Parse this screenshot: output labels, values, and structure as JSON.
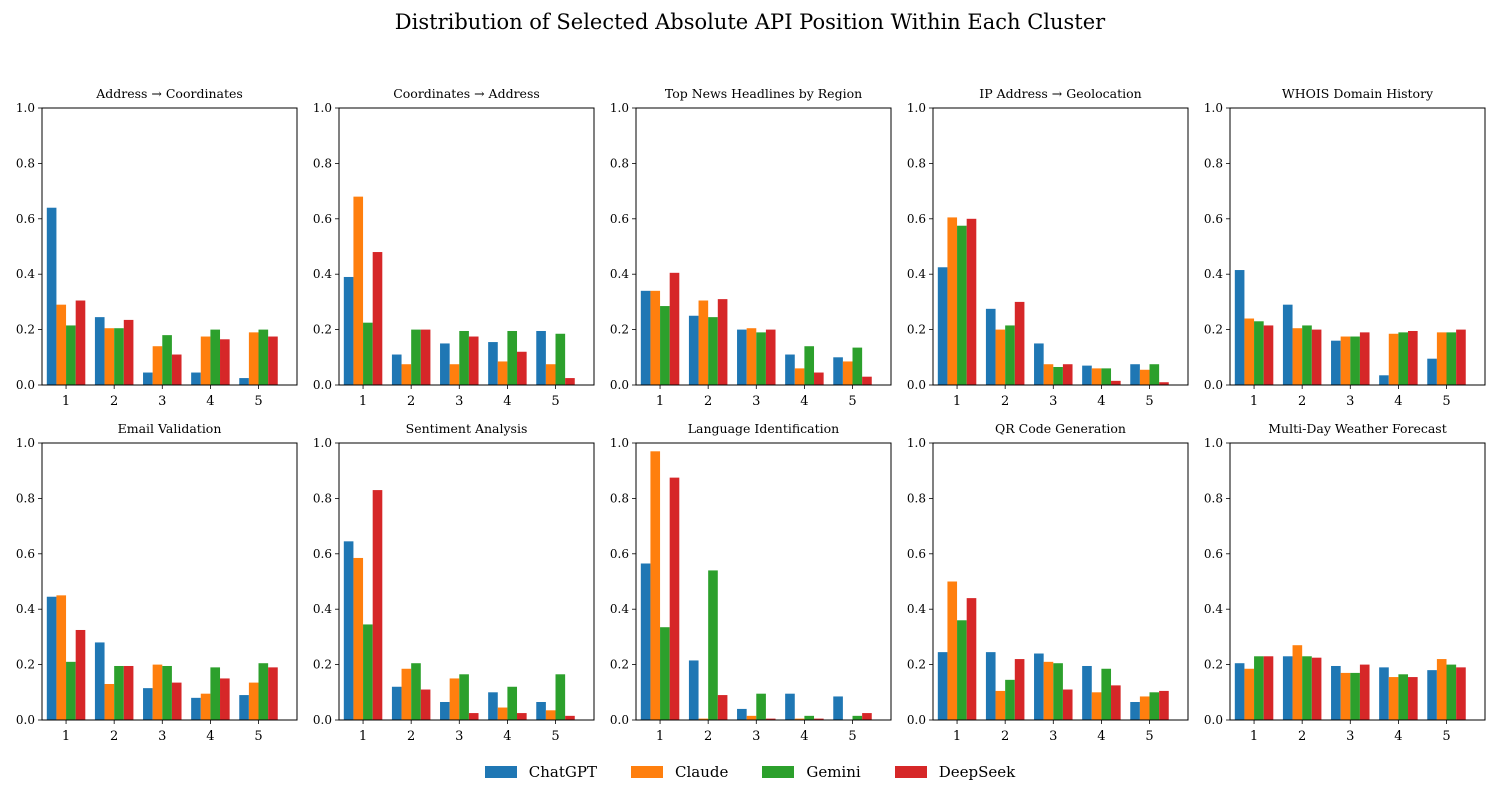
{
  "figure": {
    "title": "Distribution of Selected Absolute API Position Within Each Cluster"
  },
  "legend": {
    "items": [
      {
        "name": "ChatGPT",
        "color": "#1f77b4"
      },
      {
        "name": "Claude",
        "color": "#ff7f0e"
      },
      {
        "name": "Gemini",
        "color": "#2ca02c"
      },
      {
        "name": "DeepSeek",
        "color": "#d62728"
      }
    ]
  },
  "chart_data": [
    {
      "type": "bar",
      "title": "Address → Coordinates",
      "categories": [
        "1",
        "2",
        "3",
        "4",
        "5"
      ],
      "ylim": [
        0,
        1
      ],
      "yticks": [
        "0.0",
        "0.2",
        "0.4",
        "0.6",
        "0.8",
        "1.0"
      ],
      "series": [
        {
          "name": "ChatGPT",
          "values": [
            0.64,
            0.245,
            0.045,
            0.045,
            0.025
          ]
        },
        {
          "name": "Claude",
          "values": [
            0.29,
            0.205,
            0.14,
            0.175,
            0.19
          ]
        },
        {
          "name": "Gemini",
          "values": [
            0.215,
            0.205,
            0.18,
            0.2,
            0.2
          ]
        },
        {
          "name": "DeepSeek",
          "values": [
            0.305,
            0.235,
            0.11,
            0.165,
            0.175
          ]
        }
      ]
    },
    {
      "type": "bar",
      "title": "Coordinates → Address",
      "categories": [
        "1",
        "2",
        "3",
        "4",
        "5"
      ],
      "ylim": [
        0,
        1
      ],
      "yticks": [
        "0.0",
        "0.2",
        "0.4",
        "0.6",
        "0.8",
        "1.0"
      ],
      "series": [
        {
          "name": "ChatGPT",
          "values": [
            0.39,
            0.11,
            0.15,
            0.155,
            0.195
          ]
        },
        {
          "name": "Claude",
          "values": [
            0.68,
            0.075,
            0.075,
            0.085,
            0.075
          ]
        },
        {
          "name": "Gemini",
          "values": [
            0.225,
            0.2,
            0.195,
            0.195,
            0.185
          ]
        },
        {
          "name": "DeepSeek",
          "values": [
            0.48,
            0.2,
            0.175,
            0.12,
            0.025
          ]
        }
      ]
    },
    {
      "type": "bar",
      "title": "Top News Headlines by Region",
      "categories": [
        "1",
        "2",
        "3",
        "4",
        "5"
      ],
      "ylim": [
        0,
        1
      ],
      "yticks": [
        "0.0",
        "0.2",
        "0.4",
        "0.6",
        "0.8",
        "1.0"
      ],
      "series": [
        {
          "name": "ChatGPT",
          "values": [
            0.34,
            0.25,
            0.2,
            0.11,
            0.1
          ]
        },
        {
          "name": "Claude",
          "values": [
            0.34,
            0.305,
            0.205,
            0.06,
            0.085
          ]
        },
        {
          "name": "Gemini",
          "values": [
            0.285,
            0.245,
            0.19,
            0.14,
            0.135
          ]
        },
        {
          "name": "DeepSeek",
          "values": [
            0.405,
            0.31,
            0.2,
            0.045,
            0.03
          ]
        }
      ]
    },
    {
      "type": "bar",
      "title": "IP Address → Geolocation",
      "categories": [
        "1",
        "2",
        "3",
        "4",
        "5"
      ],
      "ylim": [
        0,
        1
      ],
      "yticks": [
        "0.0",
        "0.2",
        "0.4",
        "0.6",
        "0.8",
        "1.0"
      ],
      "series": [
        {
          "name": "ChatGPT",
          "values": [
            0.425,
            0.275,
            0.15,
            0.07,
            0.075
          ]
        },
        {
          "name": "Claude",
          "values": [
            0.605,
            0.2,
            0.075,
            0.06,
            0.055
          ]
        },
        {
          "name": "Gemini",
          "values": [
            0.575,
            0.215,
            0.065,
            0.06,
            0.075
          ]
        },
        {
          "name": "DeepSeek",
          "values": [
            0.6,
            0.3,
            0.075,
            0.015,
            0.01
          ]
        }
      ]
    },
    {
      "type": "bar",
      "title": "WHOIS Domain History",
      "categories": [
        "1",
        "2",
        "3",
        "4",
        "5"
      ],
      "ylim": [
        0,
        1
      ],
      "yticks": [
        "0.0",
        "0.2",
        "0.4",
        "0.6",
        "0.8",
        "1.0"
      ],
      "series": [
        {
          "name": "ChatGPT",
          "values": [
            0.415,
            0.29,
            0.16,
            0.035,
            0.095
          ]
        },
        {
          "name": "Claude",
          "values": [
            0.24,
            0.205,
            0.175,
            0.185,
            0.19
          ]
        },
        {
          "name": "Gemini",
          "values": [
            0.23,
            0.215,
            0.175,
            0.19,
            0.19
          ]
        },
        {
          "name": "DeepSeek",
          "values": [
            0.215,
            0.2,
            0.19,
            0.195,
            0.2
          ]
        }
      ]
    },
    {
      "type": "bar",
      "title": "Email Validation",
      "categories": [
        "1",
        "2",
        "3",
        "4",
        "5"
      ],
      "ylim": [
        0,
        1
      ],
      "yticks": [
        "0.0",
        "0.2",
        "0.4",
        "0.6",
        "0.8",
        "1.0"
      ],
      "series": [
        {
          "name": "ChatGPT",
          "values": [
            0.445,
            0.28,
            0.115,
            0.08,
            0.09
          ]
        },
        {
          "name": "Claude",
          "values": [
            0.45,
            0.13,
            0.2,
            0.095,
            0.135
          ]
        },
        {
          "name": "Gemini",
          "values": [
            0.21,
            0.195,
            0.195,
            0.19,
            0.205
          ]
        },
        {
          "name": "DeepSeek",
          "values": [
            0.325,
            0.195,
            0.135,
            0.15,
            0.19
          ]
        }
      ]
    },
    {
      "type": "bar",
      "title": "Sentiment Analysis",
      "categories": [
        "1",
        "2",
        "3",
        "4",
        "5"
      ],
      "ylim": [
        0,
        1
      ],
      "yticks": [
        "0.0",
        "0.2",
        "0.4",
        "0.6",
        "0.8",
        "1.0"
      ],
      "series": [
        {
          "name": "ChatGPT",
          "values": [
            0.645,
            0.12,
            0.065,
            0.1,
            0.065
          ]
        },
        {
          "name": "Claude",
          "values": [
            0.585,
            0.185,
            0.15,
            0.045,
            0.035
          ]
        },
        {
          "name": "Gemini",
          "values": [
            0.345,
            0.205,
            0.165,
            0.12,
            0.165
          ]
        },
        {
          "name": "DeepSeek",
          "values": [
            0.83,
            0.11,
            0.025,
            0.025,
            0.015
          ]
        }
      ]
    },
    {
      "type": "bar",
      "title": "Language Identification",
      "categories": [
        "1",
        "2",
        "3",
        "4",
        "5"
      ],
      "ylim": [
        0,
        1
      ],
      "yticks": [
        "0.0",
        "0.2",
        "0.4",
        "0.6",
        "0.8",
        "1.0"
      ],
      "series": [
        {
          "name": "ChatGPT",
          "values": [
            0.565,
            0.215,
            0.04,
            0.095,
            0.085
          ]
        },
        {
          "name": "Claude",
          "values": [
            0.97,
            0.005,
            0.015,
            0.005,
            0.0
          ]
        },
        {
          "name": "Gemini",
          "values": [
            0.335,
            0.54,
            0.095,
            0.015,
            0.015
          ]
        },
        {
          "name": "DeepSeek",
          "values": [
            0.875,
            0.09,
            0.005,
            0.005,
            0.025
          ]
        }
      ]
    },
    {
      "type": "bar",
      "title": "QR Code Generation",
      "categories": [
        "1",
        "2",
        "3",
        "4",
        "5"
      ],
      "ylim": [
        0,
        1
      ],
      "yticks": [
        "0.0",
        "0.2",
        "0.4",
        "0.6",
        "0.8",
        "1.0"
      ],
      "series": [
        {
          "name": "ChatGPT",
          "values": [
            0.245,
            0.245,
            0.24,
            0.195,
            0.065
          ]
        },
        {
          "name": "Claude",
          "values": [
            0.5,
            0.105,
            0.21,
            0.1,
            0.085
          ]
        },
        {
          "name": "Gemini",
          "values": [
            0.36,
            0.145,
            0.205,
            0.185,
            0.1
          ]
        },
        {
          "name": "DeepSeek",
          "values": [
            0.44,
            0.22,
            0.11,
            0.125,
            0.105
          ]
        }
      ]
    },
    {
      "type": "bar",
      "title": "Multi-Day Weather Forecast",
      "categories": [
        "1",
        "2",
        "3",
        "4",
        "5"
      ],
      "ylim": [
        0,
        1
      ],
      "yticks": [
        "0.0",
        "0.2",
        "0.4",
        "0.6",
        "0.8",
        "1.0"
      ],
      "series": [
        {
          "name": "ChatGPT",
          "values": [
            0.205,
            0.23,
            0.195,
            0.19,
            0.18
          ]
        },
        {
          "name": "Claude",
          "values": [
            0.185,
            0.27,
            0.17,
            0.155,
            0.22
          ]
        },
        {
          "name": "Gemini",
          "values": [
            0.23,
            0.23,
            0.17,
            0.165,
            0.2
          ]
        },
        {
          "name": "DeepSeek",
          "values": [
            0.23,
            0.225,
            0.2,
            0.155,
            0.19
          ]
        }
      ]
    }
  ]
}
